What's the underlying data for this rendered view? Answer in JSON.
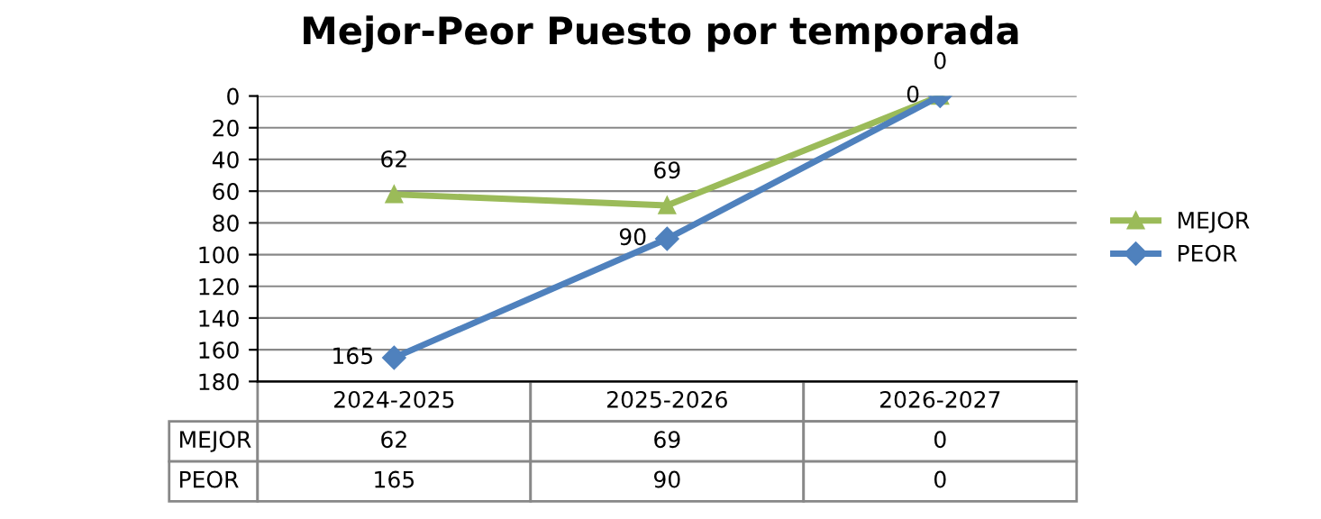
{
  "chart_data": {
    "type": "line",
    "title": "Mejor-Peor Puesto por temporada",
    "categories": [
      "2024-2025",
      "2025-2026",
      "2026-2027"
    ],
    "series": [
      {
        "name": "MEJOR",
        "color": "#9bbb59",
        "values": [
          62,
          69,
          0
        ],
        "value_labels": [
          "62",
          "69",
          "0"
        ],
        "marker": "triangle"
      },
      {
        "name": "PEOR",
        "color": "#4f81bd",
        "values": [
          165,
          90,
          0
        ],
        "value_labels": [
          "165",
          "90",
          "0"
        ],
        "marker": "diamond"
      }
    ],
    "ylim": [
      180,
      0
    ],
    "yticks": [
      0,
      20,
      40,
      60,
      80,
      100,
      120,
      140,
      160,
      180
    ],
    "grid": "y",
    "legend": "right"
  }
}
